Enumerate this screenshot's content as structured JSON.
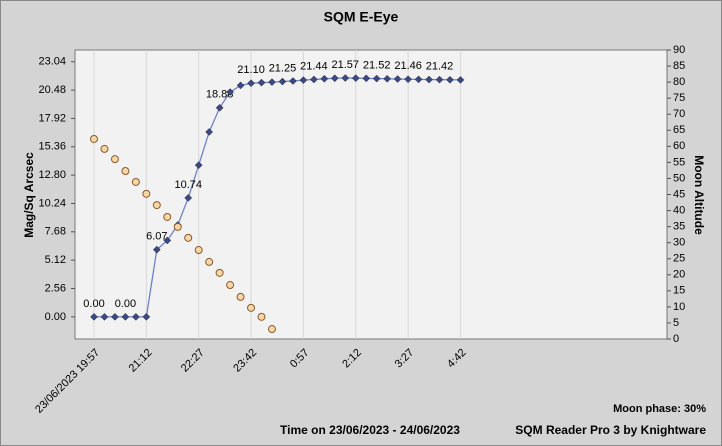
{
  "chart_data": {
    "type": "line",
    "title": "SQM E-Eye",
    "ylabel": "Mag/Sq Arcsec",
    "y2label": "Moon Altitude",
    "xlabel": "Time on 23/06/2023 - 24/06/2023",
    "annotations": [
      "Moon phase: 30%",
      "SQM Reader Pro 3 by Knightware"
    ],
    "categories": [
      "23/06/2023 19:57",
      null,
      null,
      null,
      null,
      "21:12",
      null,
      null,
      null,
      null,
      "22:27",
      null,
      null,
      null,
      null,
      "23:42",
      null,
      null,
      null,
      null,
      "0:57",
      null,
      null,
      null,
      null,
      "2:12",
      null,
      null,
      null,
      null,
      "3:27",
      null,
      null,
      null,
      null,
      "4:42"
    ],
    "series": [
      {
        "color": "#6f82c8",
        "marker_color": "#3b4a86",
        "values": [
          0,
          0,
          0,
          0,
          0,
          0,
          6.07,
          6.9,
          8.3,
          10.74,
          13.7,
          16.7,
          18.88,
          20.3,
          20.9,
          21.1,
          21.15,
          21.2,
          21.25,
          21.3,
          21.38,
          21.44,
          21.5,
          21.55,
          21.57,
          21.56,
          21.54,
          21.52,
          21.5,
          21.48,
          21.46,
          21.45,
          21.43,
          21.42,
          21.41,
          21.4
        ],
        "value_labels": [
          "0.00",
          null,
          null,
          "0.00",
          null,
          null,
          "6.07",
          null,
          null,
          "10.74",
          null,
          null,
          "18.88",
          null,
          null,
          "21.10",
          null,
          null,
          "21.25",
          null,
          null,
          "21.44",
          null,
          null,
          "21.57",
          null,
          null,
          "21.52",
          null,
          null,
          "21.46",
          null,
          null,
          "21.42",
          null,
          null
        ]
      },
      {
        "color": "#f7d7a8",
        "marker_stroke": "#8a5a2a",
        "axis": "y2",
        "values": [
          62.3,
          59.2,
          56,
          52.3,
          48.9,
          45.2,
          41.7,
          38,
          34.9,
          31.5,
          27.7,
          24,
          20.6,
          16.8,
          13.1,
          9.7,
          6.9,
          3.1,
          null,
          null,
          null,
          null,
          null,
          null,
          null,
          null,
          null,
          null,
          null,
          null,
          null,
          null,
          null,
          null,
          null,
          null
        ]
      }
    ],
    "ylim": [
      -2.0,
      24.1
    ],
    "yticks": [
      {
        "value": 0,
        "label": "0.00"
      },
      {
        "value": 2.56,
        "label": "2.56"
      },
      {
        "value": 5.12,
        "label": "5.12"
      },
      {
        "value": 7.68,
        "label": "7.68"
      },
      {
        "value": 10.24,
        "label": "10.24"
      },
      {
        "value": 12.8,
        "label": "12.80"
      },
      {
        "value": 15.36,
        "label": "15.36"
      },
      {
        "value": 17.92,
        "label": "17.92"
      },
      {
        "value": 20.48,
        "label": "20.48"
      },
      {
        "value": 23.04,
        "label": "23.04"
      }
    ],
    "y2lim": [
      0,
      90
    ],
    "y2ticks": [
      0,
      5,
      10,
      15,
      20,
      25,
      30,
      35,
      40,
      45,
      50,
      55,
      60,
      65,
      70,
      75,
      80,
      85,
      90
    ],
    "grid": true
  }
}
